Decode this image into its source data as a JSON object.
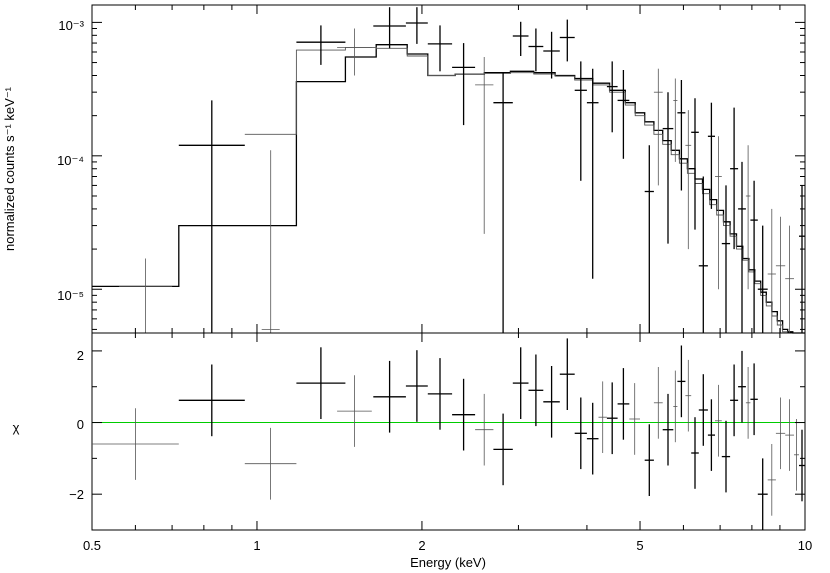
{
  "chart_data": [
    {
      "type": "scatter",
      "panel": "spectrum",
      "title": "",
      "xlabel": "Energy (keV)",
      "ylabel": "normalized counts s⁻¹ keV⁻¹",
      "xscale": "log",
      "yscale": "log",
      "xlim": [
        0.5,
        10
      ],
      "ylim": [
        4.7e-06,
        0.00135
      ],
      "x_ticks": [
        "0.5",
        "1",
        "2",
        "5",
        "10"
      ],
      "y_ticks": [
        "10⁻⁵",
        "10⁻⁴",
        "10⁻³"
      ],
      "series": [
        {
          "style": "dark",
          "points": [
            {
              "xlo": 0.72,
              "xhi": 0.95,
              "y": 0.00012,
              "ylo": 4.7e-06,
              "yhi": 0.00026
            },
            {
              "xlo": 1.18,
              "xhi": 1.45,
              "y": 0.00071,
              "ylo": 0.00048,
              "yhi": 0.00095
            },
            {
              "xlo": 1.63,
              "xhi": 1.87,
              "y": 0.00094,
              "ylo": 0.00064,
              "yhi": 0.0013
            },
            {
              "xlo": 1.87,
              "xhi": 2.05,
              "y": 0.00099,
              "ylo": 0.00069,
              "yhi": 0.0013
            },
            {
              "xlo": 2.05,
              "xhi": 2.27,
              "y": 0.00069,
              "ylo": 0.00043,
              "yhi": 0.00095
            },
            {
              "xlo": 2.27,
              "xhi": 2.5,
              "y": 0.00046,
              "ylo": 0.00017,
              "yhi": 0.0007
            },
            {
              "xlo": 2.7,
              "xhi": 2.93,
              "y": 0.00025,
              "ylo": 4.7e-06,
              "yhi": 0.00042
            },
            {
              "xlo": 2.93,
              "xhi": 3.13,
              "y": 0.00079,
              "ylo": 0.00056,
              "yhi": 0.00101
            },
            {
              "xlo": 3.13,
              "xhi": 3.33,
              "y": 0.00066,
              "ylo": 0.00043,
              "yhi": 0.0009
            },
            {
              "xlo": 3.33,
              "xhi": 3.57,
              "y": 0.00061,
              "ylo": 0.00038,
              "yhi": 0.00085
            },
            {
              "xlo": 3.57,
              "xhi": 3.8,
              "y": 0.00077,
              "ylo": 0.00051,
              "yhi": 0.00105
            },
            {
              "xlo": 3.8,
              "xhi": 4.0,
              "y": 0.00031,
              "ylo": 6.5e-05,
              "yhi": 0.00051
            },
            {
              "xlo": 4.0,
              "xhi": 4.2,
              "y": 0.00025,
              "ylo": 1.2e-05,
              "yhi": 0.00045
            },
            {
              "xlo": 4.35,
              "xhi": 4.55,
              "y": 0.00033,
              "ylo": 0.00015,
              "yhi": 0.00051
            },
            {
              "xlo": 4.55,
              "xhi": 4.78,
              "y": 0.00026,
              "ylo": 9.5e-05,
              "yhi": 0.00044
            },
            {
              "xlo": 5.1,
              "xhi": 5.3,
              "y": 5.4e-05,
              "ylo": 4.7e-06,
              "yhi": 0.00012
            },
            {
              "xlo": 5.5,
              "xhi": 5.75,
              "y": 0.00016,
              "ylo": 2.2e-05,
              "yhi": 0.0003
            },
            {
              "xlo": 5.85,
              "xhi": 6.05,
              "y": 0.00021,
              "ylo": 5.5e-05,
              "yhi": 0.00037
            },
            {
              "xlo": 6.2,
              "xhi": 6.4,
              "y": 0.00015,
              "ylo": 2.8e-05,
              "yhi": 0.00027
            },
            {
              "xlo": 6.4,
              "xhi": 6.65,
              "y": 1.5e-05,
              "ylo": 4.7e-06,
              "yhi": 7e-05
            },
            {
              "xlo": 6.65,
              "xhi": 6.85,
              "y": 0.00014,
              "ylo": 4e-05,
              "yhi": 0.00025
            },
            {
              "xlo": 7.05,
              "xhi": 7.3,
              "y": 2.2e-05,
              "ylo": 4.7e-06,
              "yhi": 6e-05
            },
            {
              "xlo": 7.3,
              "xhi": 7.55,
              "y": 8e-05,
              "ylo": 2e-05,
              "yhi": 0.00023
            },
            {
              "xlo": 7.55,
              "xhi": 7.8,
              "y": 4e-05,
              "ylo": 4.7e-06,
              "yhi": 9e-05
            },
            {
              "xlo": 7.95,
              "xhi": 8.2,
              "y": 3.3e-05,
              "ylo": 4.7e-06,
              "yhi": 6.5e-05
            },
            {
              "xlo": 8.2,
              "xhi": 8.55,
              "y": 1e-05,
              "ylo": 4.7e-06,
              "yhi": 3e-05
            },
            {
              "xlo": 9.75,
              "xhi": 10.0,
              "y": 2.5e-05,
              "ylo": 4.7e-06,
              "yhi": 6e-05
            }
          ]
        },
        {
          "style": "light",
          "points": [
            {
              "xlo": 0.56,
              "xhi": 0.7,
              "y": 1.05e-05,
              "ylo": 4.7e-06,
              "yhi": 1.7e-05
            },
            {
              "xlo": 1.02,
              "xhi": 1.1,
              "y": 5e-06,
              "ylo": 4.7e-06,
              "yhi": 0.00011
            },
            {
              "xlo": 1.4,
              "xhi": 1.62,
              "y": 0.00065,
              "ylo": 0.0004,
              "yhi": 0.0009
            },
            {
              "xlo": 2.5,
              "xhi": 2.7,
              "y": 0.00034,
              "ylo": 2.6e-05,
              "yhi": 0.00055
            },
            {
              "xlo": 5.3,
              "xhi": 5.5,
              "y": 0.0003,
              "ylo": 6e-05,
              "yhi": 0.00045
            },
            {
              "xlo": 5.75,
              "xhi": 5.85,
              "y": 0.00026,
              "ylo": 9e-05,
              "yhi": 0.00038
            },
            {
              "xlo": 6.05,
              "xhi": 6.2,
              "y": 0.00012,
              "ylo": 2e-05,
              "yhi": 0.00022
            },
            {
              "xlo": 6.85,
              "xhi": 7.05,
              "y": 7e-05,
              "ylo": 1e-05,
              "yhi": 0.00014
            },
            {
              "xlo": 7.8,
              "xhi": 7.95,
              "y": 5e-05,
              "ylo": 1e-05,
              "yhi": 0.00012
            },
            {
              "xlo": 8.55,
              "xhi": 8.85,
              "y": 1.3e-05,
              "ylo": 4.7e-06,
              "yhi": 4e-05
            },
            {
              "xlo": 8.85,
              "xhi": 9.2,
              "y": 1.5e-05,
              "ylo": 4.7e-06,
              "yhi": 3.5e-05
            },
            {
              "xlo": 9.2,
              "xhi": 9.55,
              "y": 1.2e-05,
              "ylo": 4.7e-06,
              "yhi": 3e-05
            }
          ]
        }
      ],
      "models": [
        {
          "style": "dark",
          "edges": [
            0.5,
            0.72,
            0.95,
            1.18,
            1.45,
            1.65,
            1.88,
            2.05,
            2.3,
            2.6,
            2.9,
            3.2,
            3.5,
            3.8,
            4.1,
            4.4,
            4.7,
            4.9,
            5.1,
            5.3,
            5.5,
            5.7,
            5.9,
            6.1,
            6.3,
            6.5,
            6.7,
            6.9,
            7.1,
            7.3,
            7.5,
            7.7,
            7.9,
            8.1,
            8.3,
            8.5,
            8.7,
            8.9,
            9.1,
            9.3,
            9.5,
            9.7,
            10.0
          ],
          "values": [
            1.05e-05,
            3e-05,
            3e-05,
            0.00036,
            0.00055,
            0.00068,
            0.00058,
            0.0004,
            0.00041,
            0.00042,
            0.00043,
            0.00042,
            0.0004,
            0.00038,
            0.00035,
            0.00031,
            0.00025,
            0.00021,
            0.00018,
            0.000155,
            0.00013,
            0.00011,
            9.5e-05,
            8e-05,
            6.7e-05,
            5.6e-05,
            4.7e-05,
            3.9e-05,
            3.2e-05,
            2.6e-05,
            2.1e-05,
            1.7e-05,
            1.4e-05,
            1.15e-05,
            9.5e-06,
            8e-06,
            6.8e-06,
            5.8e-06,
            5e-06,
            4.8e-06,
            4.7e-06,
            4.7e-06
          ]
        },
        {
          "style": "light",
          "edges": [
            0.95,
            1.18,
            1.45,
            1.65,
            1.88,
            2.05,
            2.3,
            2.6,
            2.9,
            3.2,
            3.5,
            3.8,
            4.1,
            4.4,
            4.7,
            4.9,
            5.1,
            5.3,
            5.5,
            5.7,
            5.9,
            6.1,
            6.3,
            6.5,
            6.7,
            6.9,
            7.1,
            7.3,
            7.5,
            7.7,
            7.9,
            8.1,
            8.3,
            8.5,
            8.7,
            8.9,
            9.1,
            9.3,
            9.5,
            9.7,
            10.0
          ],
          "values": [
            0.000145,
            0.00062,
            0.00065,
            0.00064,
            0.00056,
            0.0004,
            0.00041,
            0.000415,
            0.00042,
            0.00041,
            0.000395,
            0.00037,
            0.00034,
            0.0003,
            0.00024,
            0.0002,
            0.00017,
            0.000145,
            0.000122,
            0.000102,
            8.8e-05,
            7.4e-05,
            6.2e-05,
            5.2e-05,
            4.3e-05,
            3.6e-05,
            3e-05,
            2.5e-05,
            2e-05,
            1.65e-05,
            1.35e-05,
            1.1e-05,
            9e-06,
            7.5e-06,
            6.3e-06,
            5.4e-06,
            4.8e-06,
            4.7e-06,
            4.7e-06,
            4.7e-06
          ]
        }
      ]
    },
    {
      "type": "scatter",
      "panel": "residuals",
      "title": "",
      "xlabel": "Energy (keV)",
      "ylabel": "χ",
      "xscale": "log",
      "yscale": "linear",
      "xlim": [
        0.5,
        10
      ],
      "ylim": [
        -3,
        2.5
      ],
      "x_ticks": [
        "0.5",
        "1",
        "2",
        "5",
        "10"
      ],
      "y_ticks": [
        "−2",
        "0",
        "2"
      ],
      "reference_line": {
        "y": 0,
        "color": "#00cc00"
      },
      "series": [
        {
          "style": "dark",
          "points": [
            {
              "xlo": 0.72,
              "xhi": 0.95,
              "y": 0.62,
              "ylo": -0.38,
              "yhi": 1.62
            },
            {
              "xlo": 1.18,
              "xhi": 1.45,
              "y": 1.1,
              "ylo": 0.1,
              "yhi": 2.1
            },
            {
              "xlo": 1.63,
              "xhi": 1.87,
              "y": 0.72,
              "ylo": -0.28,
              "yhi": 1.72
            },
            {
              "xlo": 1.87,
              "xhi": 2.05,
              "y": 1.02,
              "ylo": 0.02,
              "yhi": 2.02
            },
            {
              "xlo": 2.05,
              "xhi": 2.27,
              "y": 0.8,
              "ylo": -0.2,
              "yhi": 1.8
            },
            {
              "xlo": 2.27,
              "xhi": 2.5,
              "y": 0.22,
              "ylo": -0.78,
              "yhi": 1.22
            },
            {
              "xlo": 2.7,
              "xhi": 2.93,
              "y": -0.75,
              "ylo": -1.75,
              "yhi": 0.25
            },
            {
              "xlo": 2.93,
              "xhi": 3.13,
              "y": 1.1,
              "ylo": 0.1,
              "yhi": 2.1
            },
            {
              "xlo": 3.13,
              "xhi": 3.33,
              "y": 0.9,
              "ylo": -0.1,
              "yhi": 1.9
            },
            {
              "xlo": 3.33,
              "xhi": 3.57,
              "y": 0.58,
              "ylo": -0.42,
              "yhi": 1.58
            },
            {
              "xlo": 3.57,
              "xhi": 3.8,
              "y": 1.35,
              "ylo": 0.35,
              "yhi": 2.35
            },
            {
              "xlo": 3.8,
              "xhi": 4.0,
              "y": -0.3,
              "ylo": -1.3,
              "yhi": 0.7
            },
            {
              "xlo": 4.0,
              "xhi": 4.2,
              "y": -0.45,
              "ylo": -1.45,
              "yhi": 0.55
            },
            {
              "xlo": 4.35,
              "xhi": 4.55,
              "y": 0.12,
              "ylo": -0.88,
              "yhi": 1.12
            },
            {
              "xlo": 4.55,
              "xhi": 4.78,
              "y": 0.52,
              "ylo": -0.48,
              "yhi": 1.52
            },
            {
              "xlo": 5.1,
              "xhi": 5.3,
              "y": -1.05,
              "ylo": -2.05,
              "yhi": -0.05
            },
            {
              "xlo": 5.5,
              "xhi": 5.75,
              "y": -0.2,
              "ylo": -1.2,
              "yhi": 0.8
            },
            {
              "xlo": 5.85,
              "xhi": 6.05,
              "y": 1.15,
              "ylo": 0.15,
              "yhi": 2.15
            },
            {
              "xlo": 6.2,
              "xhi": 6.4,
              "y": -0.85,
              "ylo": -1.85,
              "yhi": 0.15
            },
            {
              "xlo": 6.4,
              "xhi": 6.65,
              "y": 0.35,
              "ylo": -0.65,
              "yhi": 1.35
            },
            {
              "xlo": 6.65,
              "xhi": 6.85,
              "y": -0.35,
              "ylo": -1.35,
              "yhi": 0.65
            },
            {
              "xlo": 7.05,
              "xhi": 7.3,
              "y": -0.95,
              "ylo": -1.95,
              "yhi": 0.05
            },
            {
              "xlo": 7.3,
              "xhi": 7.55,
              "y": 0.62,
              "ylo": -0.38,
              "yhi": 1.62
            },
            {
              "xlo": 7.55,
              "xhi": 7.8,
              "y": 1.0,
              "ylo": 0.0,
              "yhi": 2.0
            },
            {
              "xlo": 7.95,
              "xhi": 8.2,
              "y": 0.65,
              "ylo": -0.35,
              "yhi": 1.65
            },
            {
              "xlo": 8.2,
              "xhi": 8.55,
              "y": -2.0,
              "ylo": -3.0,
              "yhi": -1.0
            },
            {
              "xlo": 9.75,
              "xhi": 10.0,
              "y": -1.2,
              "ylo": -2.2,
              "yhi": -0.2
            }
          ]
        },
        {
          "style": "light",
          "points": [
            {
              "xlo": 0.5,
              "xhi": 0.72,
              "y": -0.6,
              "ylo": -1.6,
              "yhi": 0.4
            },
            {
              "xlo": 0.95,
              "xhi": 1.18,
              "y": -1.15,
              "ylo": -2.15,
              "yhi": -0.15
            },
            {
              "xlo": 1.4,
              "xhi": 1.62,
              "y": 0.32,
              "ylo": -0.68,
              "yhi": 1.32
            },
            {
              "xlo": 2.5,
              "xhi": 2.7,
              "y": -0.2,
              "ylo": -1.2,
              "yhi": 0.8
            },
            {
              "xlo": 4.2,
              "xhi": 4.35,
              "y": 0.15,
              "ylo": -0.85,
              "yhi": 1.15
            },
            {
              "xlo": 4.78,
              "xhi": 5.0,
              "y": 0.1,
              "ylo": -0.9,
              "yhi": 1.1
            },
            {
              "xlo": 5.3,
              "xhi": 5.5,
              "y": 0.55,
              "ylo": -0.45,
              "yhi": 1.55
            },
            {
              "xlo": 5.75,
              "xhi": 5.85,
              "y": 0.45,
              "ylo": -0.55,
              "yhi": 1.45
            },
            {
              "xlo": 6.05,
              "xhi": 6.2,
              "y": 0.75,
              "ylo": -0.25,
              "yhi": 1.75
            },
            {
              "xlo": 6.85,
              "xhi": 7.05,
              "y": 0.05,
              "ylo": -0.95,
              "yhi": 1.05
            },
            {
              "xlo": 7.8,
              "xhi": 7.95,
              "y": 0.55,
              "ylo": -0.45,
              "yhi": 1.55
            },
            {
              "xlo": 8.55,
              "xhi": 8.85,
              "y": -1.6,
              "ylo": -2.6,
              "yhi": -0.6
            },
            {
              "xlo": 8.85,
              "xhi": 9.2,
              "y": -0.3,
              "ylo": -1.3,
              "yhi": 0.7
            },
            {
              "xlo": 9.2,
              "xhi": 9.55,
              "y": -0.35,
              "ylo": -1.35,
              "yhi": 0.65
            },
            {
              "xlo": 9.55,
              "xhi": 9.75,
              "y": -0.9,
              "ylo": -1.9,
              "yhi": 0.1
            }
          ]
        }
      ]
    }
  ],
  "colors": {
    "dark_series": "#000000",
    "light_series": "#555555",
    "zero_line": "#00cc00",
    "frame": "#000000"
  }
}
